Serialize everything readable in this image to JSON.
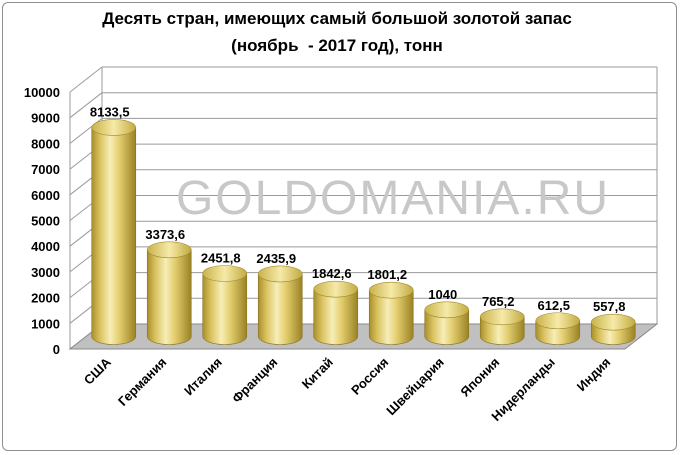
{
  "chart_data": {
    "type": "bar",
    "title": "Десять стран, имеющих самый большой золотой запас",
    "subtitle": "(ноябрь  - 2017 год), тонн",
    "categories": [
      "США",
      "Германия",
      "Италия",
      "Франция",
      "Китай",
      "Россия",
      "Швейцария",
      "Япония",
      "Нидерланды",
      "Индия"
    ],
    "values": [
      8133.5,
      3373.6,
      2451.8,
      2435.9,
      1842.6,
      1801.2,
      1040,
      765.2,
      612.5,
      557.8
    ],
    "data_labels": [
      "8133,5",
      "3373,6",
      "2451,8",
      "2435,9",
      "1842,6",
      "1801,2",
      "1040",
      "765,2",
      "612,5",
      "557,8"
    ],
    "yticks": [
      "0",
      "1000",
      "2000",
      "3000",
      "4000",
      "5000",
      "6000",
      "7000",
      "8000",
      "9000",
      "10000"
    ],
    "ylim": [
      0,
      10000
    ],
    "xlabel": "",
    "ylabel": "",
    "grid": true,
    "legend": "none",
    "watermark": "GOLDOMANIA.RU",
    "colors": {
      "bar_light": "#f3e7a6",
      "bar_mid": "#d9c25a",
      "bar_dark": "#9c8526",
      "bar_top": "#efe09a",
      "grid": "#9a9a9a",
      "floor": "#c0c0c0"
    }
  }
}
